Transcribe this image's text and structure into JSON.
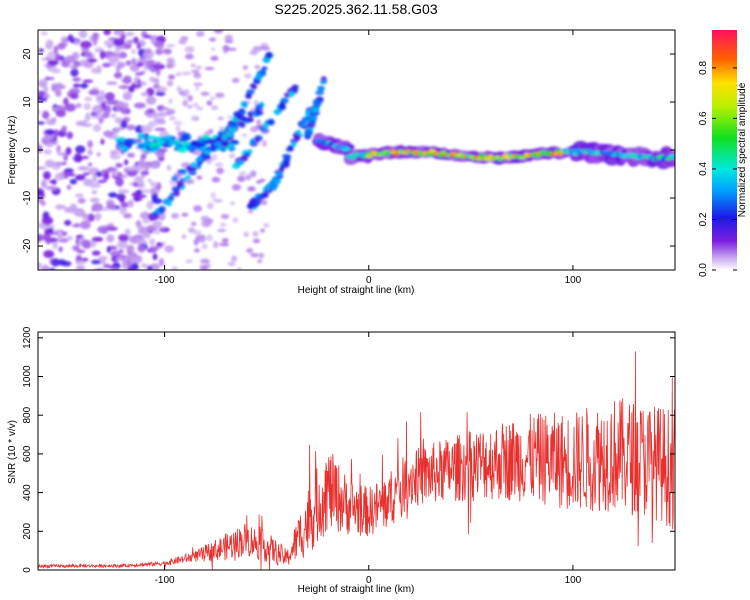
{
  "chart_data": [
    {
      "type": "heatmap",
      "title": "S225.2025.362.11.58.G03",
      "xlabel": "Height of straight line (km)",
      "ylabel": "Frequency (Hz)",
      "xlim": [
        -162,
        150
      ],
      "ylim": [
        -25,
        25
      ],
      "xticks": [
        -100,
        0,
        100
      ],
      "yticks": [
        -20,
        -10,
        0,
        10,
        20
      ],
      "colorbar": {
        "label": "Normalized spectral amplitude",
        "range": [
          0,
          0.95
        ],
        "ticks": [
          0.0,
          0.2,
          0.4,
          0.6,
          0.8
        ]
      },
      "dominant_track": {
        "x_range": [
          -25,
          150
        ],
        "frequency_hz": -1,
        "peak_amplitude": 0.9
      }
    },
    {
      "type": "line",
      "xlabel": "Height of straight line (km)",
      "ylabel": "SNR (10 * v/v)",
      "xlim": [
        -162,
        150
      ],
      "ylim": [
        0,
        1230
      ],
      "xticks": [
        -100,
        0,
        100
      ],
      "yticks": [
        0,
        200,
        400,
        600,
        800,
        1000,
        1200
      ],
      "series": [
        {
          "name": "SNR",
          "color": "#e8302e",
          "envelope": {
            "x": [
              -162,
              -120,
              -100,
              -85,
              -70,
              -60,
              -50,
              -40,
              -30,
              -20,
              -10,
              0,
              10,
              20,
              40,
              60,
              80,
              100,
              120,
              140,
              150
            ],
            "mean": [
              20,
              22,
              35,
              70,
              120,
              160,
              120,
              60,
              250,
              420,
              330,
              300,
              360,
              470,
              520,
              560,
              580,
              560,
              600,
              560,
              520
            ],
            "amp": [
              8,
              8,
              12,
              30,
              70,
              90,
              80,
              45,
              180,
              220,
              150,
              130,
              150,
              150,
              170,
              200,
              230,
              260,
              300,
              300,
              320
            ]
          }
        }
      ]
    }
  ]
}
